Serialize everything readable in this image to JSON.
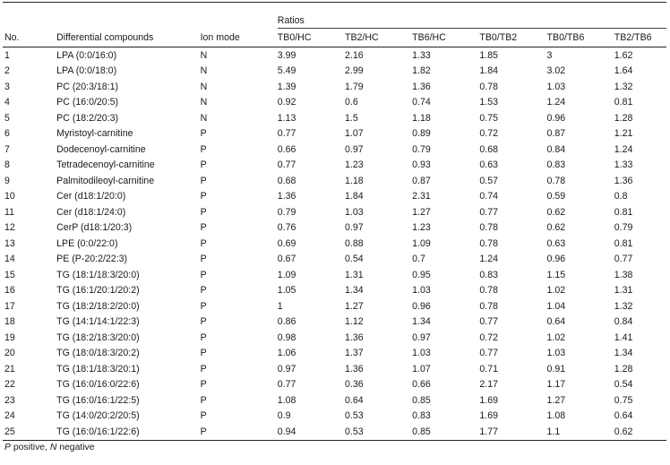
{
  "headers": {
    "group": "Ratios",
    "no": "No.",
    "compound": "Differential compounds",
    "ion": "Ion mode",
    "ratios": [
      "TB0/HC",
      "TB2/HC",
      "TB6/HC",
      "TB0/TB2",
      "TB0/TB6",
      "TB2/TB6"
    ]
  },
  "rows": [
    {
      "no": "1",
      "compound": "LPA (0:0/16:0)",
      "ion": "N",
      "r": [
        "3.99",
        "2.16",
        "1.33",
        "1.85",
        "3",
        "1.62"
      ]
    },
    {
      "no": "2",
      "compound": "LPA (0:0/18:0)",
      "ion": "N",
      "r": [
        "5.49",
        "2.99",
        "1.82",
        "1.84",
        "3.02",
        "1.64"
      ]
    },
    {
      "no": "3",
      "compound": "PC (20:3/18:1)",
      "ion": "N",
      "r": [
        "1.39",
        "1.79",
        "1.36",
        "0.78",
        "1.03",
        "1.32"
      ]
    },
    {
      "no": "4",
      "compound": "PC (16:0/20:5)",
      "ion": "N",
      "r": [
        "0.92",
        "0.6",
        "0.74",
        "1.53",
        "1.24",
        "0.81"
      ]
    },
    {
      "no": "5",
      "compound": "PC (18:2/20:3)",
      "ion": "N",
      "r": [
        "1.13",
        "1.5",
        "1.18",
        "0.75",
        "0.96",
        "1.28"
      ]
    },
    {
      "no": "6",
      "compound": "Myristoyl-carnitine",
      "ion": "P",
      "r": [
        "0.77",
        "1.07",
        "0.89",
        "0.72",
        "0.87",
        "1.21"
      ]
    },
    {
      "no": "7",
      "compound": "Dodecenoyl-carnitine",
      "ion": "P",
      "r": [
        "0.66",
        "0.97",
        "0.79",
        "0.68",
        "0.84",
        "1.24"
      ]
    },
    {
      "no": "8",
      "compound": "Tetradecenoyl-carnitine",
      "ion": "P",
      "r": [
        "0.77",
        "1.23",
        "0.93",
        "0.63",
        "0.83",
        "1.33"
      ]
    },
    {
      "no": "9",
      "compound": "Palmitodileoyl-carnitine",
      "ion": "P",
      "r": [
        "0.68",
        "1.18",
        "0.87",
        "0.57",
        "0.78",
        "1.36"
      ]
    },
    {
      "no": "10",
      "compound": "Cer (d18:1/20:0)",
      "ion": "P",
      "r": [
        "1.36",
        "1.84",
        "2.31",
        "0.74",
        "0.59",
        "0.8"
      ]
    },
    {
      "no": "11",
      "compound": "Cer (d18:1/24:0)",
      "ion": "P",
      "r": [
        "0.79",
        "1.03",
        "1.27",
        "0.77",
        "0.62",
        "0.81"
      ]
    },
    {
      "no": "12",
      "compound": "CerP (d18:1/20:3)",
      "ion": "P",
      "r": [
        "0.76",
        "0.97",
        "1.23",
        "0.78",
        "0.62",
        "0.79"
      ]
    },
    {
      "no": "13",
      "compound": "LPE (0:0/22:0)",
      "ion": "P",
      "r": [
        "0.69",
        "0.88",
        "1.09",
        "0.78",
        "0.63",
        "0.81"
      ]
    },
    {
      "no": "14",
      "compound": "PE (P-20:2/22:3)",
      "ion": "P",
      "r": [
        "0.67",
        "0.54",
        "0.7",
        "1.24",
        "0.96",
        "0.77"
      ]
    },
    {
      "no": "15",
      "compound": "TG (18:1/18:3/20:0)",
      "ion": "P",
      "r": [
        "1.09",
        "1.31",
        "0.95",
        "0.83",
        "1.15",
        "1.38"
      ]
    },
    {
      "no": "16",
      "compound": "TG (16:1/20:1/20:2)",
      "ion": "P",
      "r": [
        "1.05",
        "1.34",
        "1.03",
        "0.78",
        "1.02",
        "1.31"
      ]
    },
    {
      "no": "17",
      "compound": "TG (18:2/18:2/20:0)",
      "ion": "P",
      "r": [
        "1",
        "1.27",
        "0.96",
        "0.78",
        "1.04",
        "1.32"
      ]
    },
    {
      "no": "18",
      "compound": "TG (14:1/14:1/22:3)",
      "ion": "P",
      "r": [
        "0.86",
        "1.12",
        "1.34",
        "0.77",
        "0.64",
        "0.84"
      ]
    },
    {
      "no": "19",
      "compound": "TG (18:2/18:3/20:0)",
      "ion": "P",
      "r": [
        "0.98",
        "1.36",
        "0.97",
        "0.72",
        "1.02",
        "1.41"
      ]
    },
    {
      "no": "20",
      "compound": "TG (18:0/18:3/20:2)",
      "ion": "P",
      "r": [
        "1.06",
        "1.37",
        "1.03",
        "0.77",
        "1.03",
        "1.34"
      ]
    },
    {
      "no": "21",
      "compound": "TG (18:1/18:3/20:1)",
      "ion": "P",
      "r": [
        "0.97",
        "1.36",
        "1.07",
        "0.71",
        "0.91",
        "1.28"
      ]
    },
    {
      "no": "22",
      "compound": "TG (16:0/16:0/22:6)",
      "ion": "P",
      "r": [
        "0.77",
        "0.36",
        "0.66",
        "2.17",
        "1.17",
        "0.54"
      ]
    },
    {
      "no": "23",
      "compound": "TG (16:0/16:1/22:5)",
      "ion": "P",
      "r": [
        "1.08",
        "0.64",
        "0.85",
        "1.69",
        "1.27",
        "0.75"
      ]
    },
    {
      "no": "24",
      "compound": "TG (14:0/20:2/20:5)",
      "ion": "P",
      "r": [
        "0.9",
        "0.53",
        "0.83",
        "1.69",
        "1.08",
        "0.64"
      ]
    },
    {
      "no": "25",
      "compound": "TG (16:0/16:1/22:6)",
      "ion": "P",
      "r": [
        "0.94",
        "0.53",
        "0.85",
        "1.77",
        "1.1",
        "0.62"
      ]
    }
  ],
  "footnote": {
    "p_abbr": "P",
    "p_text": " positive, ",
    "n_abbr": "N",
    "n_text": " negative"
  }
}
